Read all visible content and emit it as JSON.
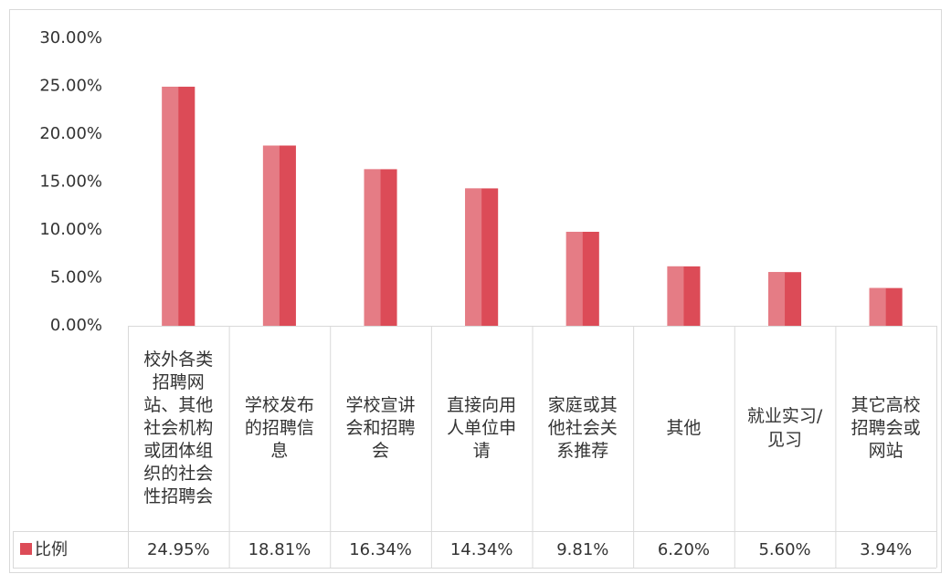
{
  "chart_data": {
    "type": "bar",
    "categories": [
      "校外各类招聘网站、其他社会机构或团体组织的社会性招聘会",
      "学校发布的招聘信息",
      "学校宣讲会和招聘会",
      "直接向用人单位申请",
      "家庭或其他社会关系推荐",
      "其他",
      "就业实习/见习",
      "其它高校招聘会或网站"
    ],
    "series": [
      {
        "name": "比例",
        "color": "#dc4b57",
        "highlight": "#e57c85",
        "values": [
          24.95,
          18.81,
          16.34,
          14.34,
          9.81,
          6.2,
          5.6,
          3.94
        ],
        "value_labels": [
          "24.95%",
          "18.81%",
          "16.34%",
          "14.34%",
          "9.81%",
          "6.20%",
          "5.60%",
          "3.94%"
        ]
      }
    ],
    "ylim": [
      0,
      30
    ],
    "yticks": [
      {
        "value": 0,
        "label": "0.00%"
      },
      {
        "value": 5,
        "label": "5.00%"
      },
      {
        "value": 10,
        "label": "10.00%"
      },
      {
        "value": 15,
        "label": "15.00%"
      },
      {
        "value": 20,
        "label": "20.00%"
      },
      {
        "value": 25,
        "label": "25.00%"
      },
      {
        "value": 30,
        "label": "30.00%"
      }
    ],
    "grid": false
  }
}
